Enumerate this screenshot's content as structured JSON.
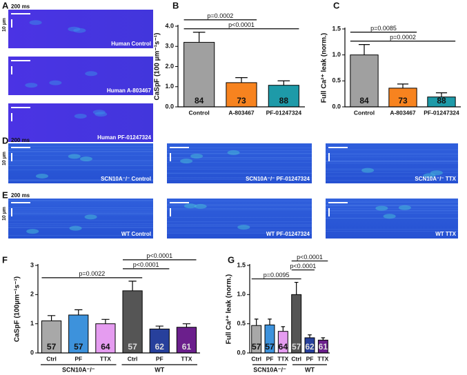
{
  "panel_labels": [
    "A",
    "B",
    "C",
    "D",
    "E",
    "F",
    "G"
  ],
  "images": {
    "A": [
      {
        "caption": "Human Control",
        "scale_x": "200 ms",
        "scale_y": "10 µm"
      },
      {
        "caption": "Human A-803467"
      },
      {
        "caption": "Human PF-01247324"
      }
    ],
    "D": [
      {
        "caption": "SCN10A⁻/⁻ Control",
        "scale_x": "200 ms",
        "scale_y": "10 µm"
      },
      {
        "caption": "SCN10A⁻/⁻ PF-01247324"
      },
      {
        "caption": "SCN10A⁻/⁻ TTX"
      }
    ],
    "E": [
      {
        "caption": "WT Control",
        "scale_x": "200 ms",
        "scale_y": "10 µm"
      },
      {
        "caption": "WT PF-01247324"
      },
      {
        "caption": "WT TTX"
      }
    ]
  },
  "chart_data": [
    {
      "type": "bar",
      "ylabel": "CaSpF (100 µm⁻¹s⁻¹)",
      "categories": [
        "Control",
        "A-803467",
        "PF-01247324"
      ],
      "values": [
        3.2,
        1.2,
        1.07
      ],
      "errors": [
        0.5,
        0.25,
        0.22
      ],
      "counts": [
        84,
        73,
        88
      ],
      "colors": [
        "#a0a0a0",
        "#f7831f",
        "#1e9aa8"
      ],
      "ylim": [
        0,
        4
      ],
      "yticks": [
        {
          "value": 0,
          "label": "0.0"
        },
        {
          "value": 1,
          "label": "1.0"
        },
        {
          "value": 2,
          "label": "2.0"
        },
        {
          "value": 3,
          "label": "3.0"
        },
        {
          "value": 4,
          "label": "4.0"
        }
      ],
      "annotations": [
        {
          "label": "p<0.0001",
          "from": 0,
          "to": 2
        },
        {
          "label": "p=0.0002",
          "from": 0,
          "to": 1
        }
      ]
    },
    {
      "type": "bar",
      "ylabel": "Full Ca²⁺ leak (norm.)",
      "categories": [
        "Control",
        "A-803467",
        "PF-01247324"
      ],
      "values": [
        1.0,
        0.36,
        0.19
      ],
      "errors": [
        0.2,
        0.08,
        0.08
      ],
      "counts": [
        84,
        73,
        88
      ],
      "colors": [
        "#a0a0a0",
        "#f7831f",
        "#1e9aa8"
      ],
      "ylim": [
        0,
        1.5
      ],
      "yticks": [
        {
          "value": 0,
          "label": "0.0"
        },
        {
          "value": 0.5,
          "label": "0.5"
        },
        {
          "value": 1,
          "label": "1.0"
        },
        {
          "value": 1.5,
          "label": "1.5"
        }
      ],
      "annotations": [
        {
          "label": "p=0.0002",
          "from": 0,
          "to": 2
        },
        {
          "label": "p=0.0085",
          "from": 0,
          "to": 1
        }
      ]
    },
    {
      "type": "bar",
      "ylabel": "CaSpF (100µm⁻¹s⁻¹)",
      "categories": [
        "Ctrl",
        "PF",
        "TTX",
        "Ctrl",
        "PF",
        "TTX"
      ],
      "groups": [
        {
          "label": "SCN10A⁻/⁻",
          "size": 3
        },
        {
          "label": "WT",
          "size": 3
        }
      ],
      "values": [
        1.1,
        1.3,
        1.0,
        2.13,
        0.82,
        0.88
      ],
      "errors": [
        0.18,
        0.18,
        0.15,
        0.33,
        0.1,
        0.12
      ],
      "counts": [
        57,
        57,
        64,
        57,
        62,
        61
      ],
      "colors": [
        "#a8a8a8",
        "#3d92dc",
        "#e59cf0",
        "#555555",
        "#27409c",
        "#6b1f8c"
      ],
      "ylim": [
        0,
        3
      ],
      "yticks": [
        0,
        1,
        2,
        3
      ],
      "annotations": [
        {
          "label": "p=0.0022",
          "from": 0,
          "to": 3
        },
        {
          "label": "p<0.0001",
          "from": 3,
          "to": 4
        },
        {
          "label": "p<0.0001",
          "from": 3,
          "to": 5
        }
      ]
    },
    {
      "type": "bar",
      "ylabel": "Full Ca²⁺ leak (norm.)",
      "categories": [
        "Ctrl",
        "PF",
        "TTX",
        "Ctrl",
        "PF",
        "TTX"
      ],
      "groups": [
        {
          "label": "SCN10A⁻/⁻",
          "size": 3
        },
        {
          "label": "WT",
          "size": 3
        }
      ],
      "values": [
        0.47,
        0.48,
        0.37,
        1.0,
        0.26,
        0.22
      ],
      "errors": [
        0.11,
        0.1,
        0.08,
        0.21,
        0.05,
        0.04
      ],
      "counts": [
        57,
        57,
        64,
        57,
        62,
        61
      ],
      "colors": [
        "#a8a8a8",
        "#3d92dc",
        "#e59cf0",
        "#555555",
        "#27409c",
        "#6b1f8c"
      ],
      "ylim": [
        0,
        1.5
      ],
      "yticks": [
        {
          "value": 0,
          "label": "0.0"
        },
        {
          "value": 0.5,
          "label": "0.5"
        },
        {
          "value": 1,
          "label": "1.0"
        },
        {
          "value": 1.5,
          "label": "1.5"
        }
      ],
      "annotations": [
        {
          "label": "p=0.0095",
          "from": 0,
          "to": 3
        },
        {
          "label": "p<0.0001",
          "from": 3,
          "to": 4
        },
        {
          "label": "p<0.0001",
          "from": 3,
          "to": 5
        }
      ]
    }
  ]
}
